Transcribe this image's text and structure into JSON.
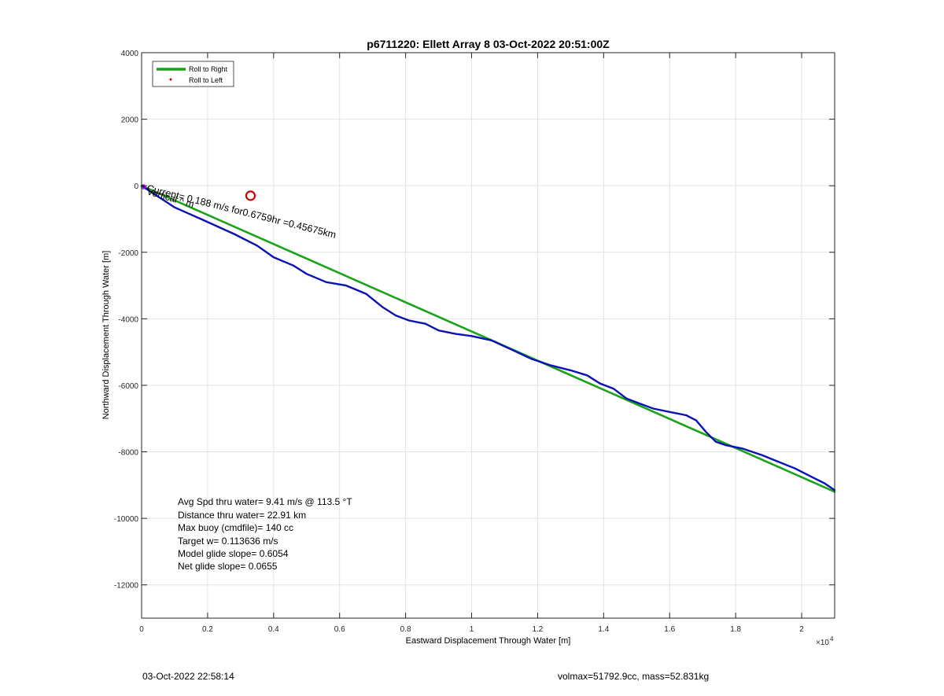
{
  "chart_data": {
    "type": "line",
    "title": "p6711220: Ellett Array 8 03-Oct-2022 20:51:00Z",
    "xlabel": "Eastward Displacement Through Water [m]",
    "ylabel": "Northward Displacement Through Water [m]",
    "x_exponent_label": "×10",
    "x_exponent_power": "4",
    "xlim": [
      0,
      21000
    ],
    "ylim": [
      -13000,
      4000
    ],
    "xticks": [
      0,
      2000,
      4000,
      6000,
      8000,
      10000,
      12000,
      14000,
      16000,
      18000,
      20000
    ],
    "xtick_labels": [
      "0",
      "0.2",
      "0.4",
      "0.6",
      "0.8",
      "1",
      "1.2",
      "1.4",
      "1.6",
      "1.8",
      "2"
    ],
    "yticks": [
      4000,
      2000,
      0,
      -2000,
      -4000,
      -6000,
      -8000,
      -10000,
      -12000
    ],
    "ytick_labels": [
      "4000",
      "2000",
      "0",
      "-2000",
      "-4000",
      "-6000",
      "-8000",
      "-10000",
      "-12000"
    ],
    "grid": true,
    "legend_position": "top-left",
    "legend": [
      {
        "label": "Roll to Right",
        "color": "#1aa31a",
        "marker": "line"
      },
      {
        "label": "Roll to Left",
        "color": "#d00000",
        "marker": "dot"
      }
    ],
    "series": [
      {
        "name": "Roll to Right",
        "color": "#1aa31a",
        "x": [
          0,
          21000
        ],
        "y": [
          0,
          -9200
        ]
      },
      {
        "color": "#0a12b0",
        "x": [
          0,
          1000,
          1800,
          2800,
          3500,
          4000,
          4600,
          5000,
          5600,
          6200,
          6800,
          7300,
          7700,
          8100,
          8600,
          9000,
          9500,
          10000,
          10600,
          11200,
          11800,
          12400,
          13000,
          13500,
          13900,
          14300,
          14700,
          15100,
          15500,
          16000,
          16500,
          16800,
          17100,
          17400,
          17700,
          18200,
          18800,
          19300,
          19800,
          20300,
          20700,
          21000
        ],
        "y": [
          0,
          -650,
          -1000,
          -1450,
          -1800,
          -2150,
          -2400,
          -2650,
          -2900,
          -3000,
          -3250,
          -3650,
          -3900,
          -4050,
          -4150,
          -4350,
          -4450,
          -4520,
          -4650,
          -4920,
          -5200,
          -5400,
          -5550,
          -5700,
          -5950,
          -6100,
          -6400,
          -6550,
          -6700,
          -6800,
          -6900,
          -7050,
          -7400,
          -7700,
          -7800,
          -7900,
          -8100,
          -8300,
          -8500,
          -8750,
          -8950,
          -9150
        ]
      }
    ],
    "marker_circle": {
      "x": 3300,
      "y": -300,
      "color": "#cc0000"
    },
    "start_marker": {
      "x": 50,
      "y": -30,
      "color": "#cc00cc"
    },
    "annotations": [
      {
        "text": "Avg Spd thru water=  9.41 m/s @ 113.5 °T"
      },
      {
        "text": "Distance thru water= 22.91 km"
      },
      {
        "text": "Max buoy (cmdfile)= 140 cc"
      },
      {
        "text": "Target w= 0.113636 m/s"
      },
      {
        "text": "Model glide slope= 0.6054"
      },
      {
        "text": "Net glide slope= 0.0655"
      }
    ],
    "current_label": "Current= 0.188 m/s for0.6759hr =0.45675km",
    "current_label_overlap": "Vertical ^ m"
  },
  "footer": {
    "left": "03-Oct-2022 22:58:14",
    "right": "volmax=51792.9cc, mass=52.831kg"
  }
}
